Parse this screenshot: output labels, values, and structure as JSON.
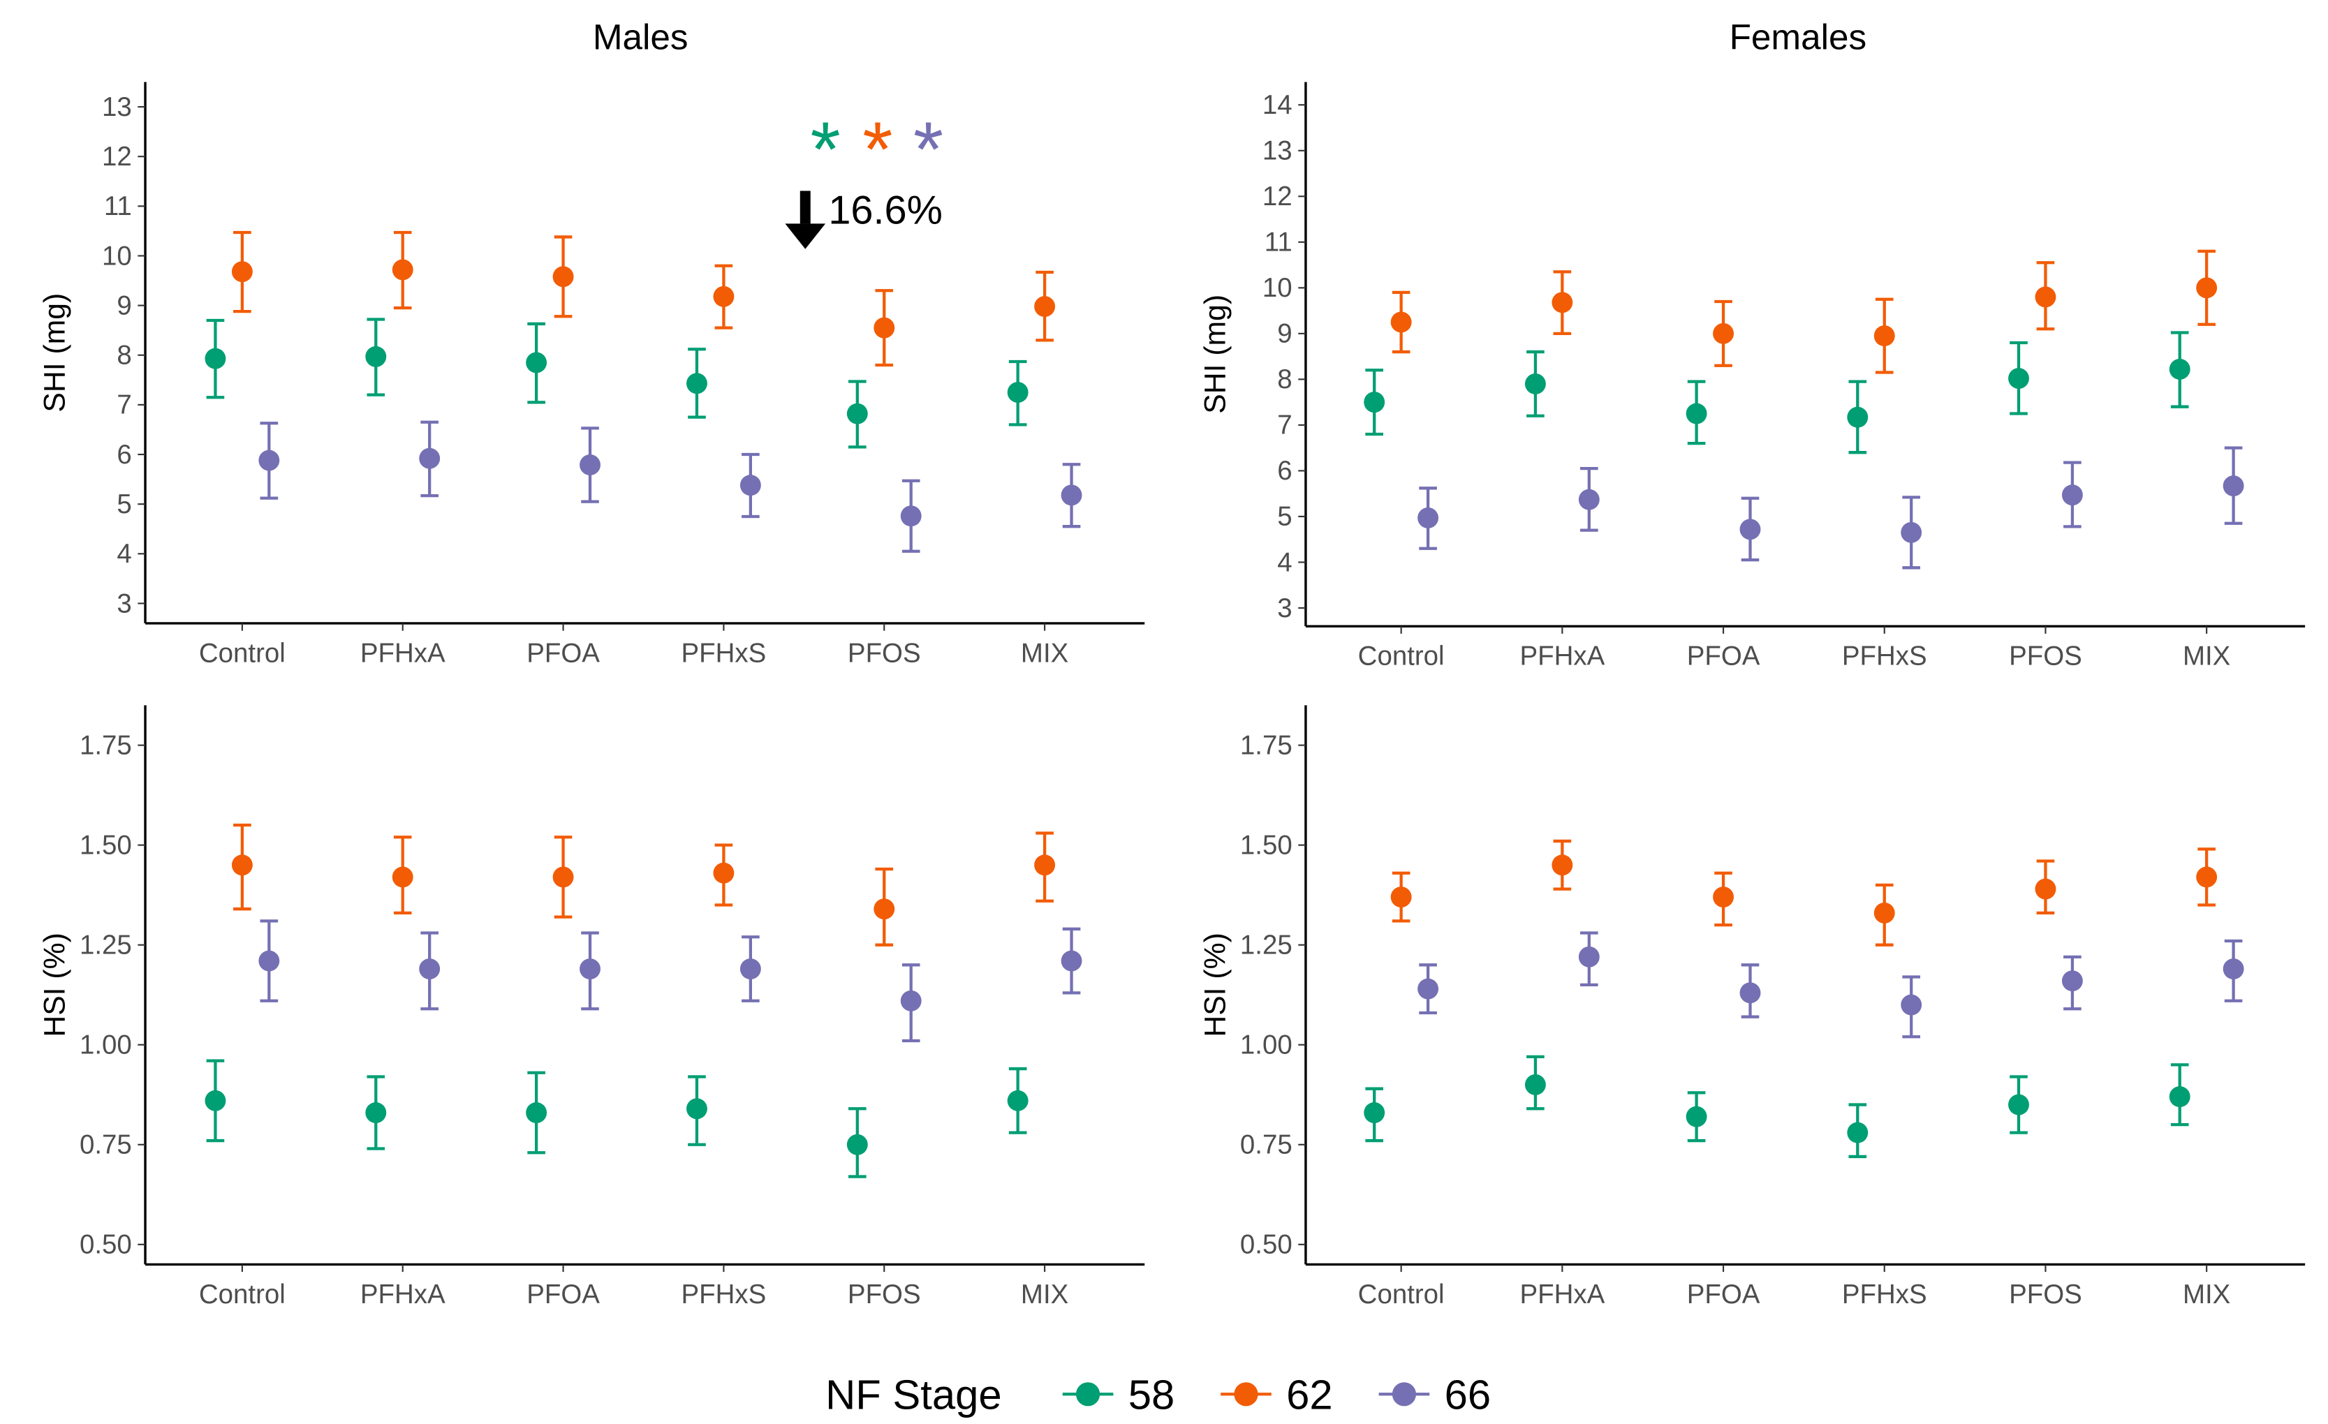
{
  "colors": {
    "58": "#009E73",
    "62": "#F25C05",
    "66": "#7570B3"
  },
  "legend": {
    "title": "NF Stage",
    "items": [
      "58",
      "62",
      "66"
    ]
  },
  "annotation": {
    "stars": "***",
    "arrow_label": "16.6%",
    "panel": "Males SHI",
    "category": "PFOS"
  },
  "chart_data": [
    {
      "type": "scatter",
      "title": "Males",
      "xlabel": "",
      "ylabel": "SHI (mg)",
      "ylim": [
        2.6,
        13.5
      ],
      "yticks": [
        3,
        4,
        5,
        6,
        7,
        8,
        9,
        10,
        11,
        12,
        13
      ],
      "categories": [
        "Control",
        "PFHxA",
        "PFOA",
        "PFHxS",
        "PFOS",
        "MIX"
      ],
      "series": [
        {
          "name": "58",
          "mean": [
            7.93,
            7.97,
            7.85,
            7.43,
            6.82,
            7.25
          ],
          "lo": [
            7.15,
            7.2,
            7.05,
            6.75,
            6.15,
            6.6
          ],
          "hi": [
            8.7,
            8.72,
            8.63,
            8.12,
            7.47,
            7.87
          ]
        },
        {
          "name": "62",
          "mean": [
            9.68,
            9.72,
            9.58,
            9.18,
            8.55,
            8.98
          ],
          "lo": [
            8.88,
            8.95,
            8.78,
            8.55,
            7.8,
            8.3
          ],
          "hi": [
            10.47,
            10.47,
            10.38,
            9.8,
            9.3,
            9.67
          ]
        },
        {
          "name": "66",
          "mean": [
            5.88,
            5.92,
            5.79,
            5.38,
            4.76,
            5.18
          ],
          "lo": [
            5.12,
            5.17,
            5.05,
            4.75,
            4.05,
            4.55
          ],
          "hi": [
            6.63,
            6.65,
            6.53,
            6.0,
            5.47,
            5.8
          ]
        }
      ]
    },
    {
      "type": "scatter",
      "title": "Females",
      "xlabel": "",
      "ylabel": "SHI (mg)",
      "ylim": [
        2.6,
        14.5
      ],
      "yticks": [
        3,
        4,
        5,
        6,
        7,
        8,
        9,
        10,
        11,
        12,
        13,
        14
      ],
      "categories": [
        "Control",
        "PFHxA",
        "PFOA",
        "PFHxS",
        "PFOS",
        "MIX"
      ],
      "series": [
        {
          "name": "58",
          "mean": [
            7.5,
            7.9,
            7.25,
            7.17,
            8.02,
            8.22
          ],
          "lo": [
            6.8,
            7.2,
            6.6,
            6.4,
            7.25,
            7.4
          ],
          "hi": [
            8.2,
            8.6,
            7.95,
            7.95,
            8.8,
            9.02
          ]
        },
        {
          "name": "62",
          "mean": [
            9.25,
            9.68,
            9.0,
            8.95,
            9.8,
            10.0
          ],
          "lo": [
            8.6,
            9.0,
            8.3,
            8.15,
            9.1,
            9.2
          ],
          "hi": [
            9.9,
            10.35,
            9.7,
            9.75,
            10.55,
            10.8
          ]
        },
        {
          "name": "66",
          "mean": [
            4.97,
            5.37,
            4.72,
            4.65,
            5.47,
            5.67
          ],
          "lo": [
            4.3,
            4.7,
            4.05,
            3.88,
            4.78,
            4.85
          ],
          "hi": [
            5.62,
            6.05,
            5.4,
            5.42,
            6.18,
            6.5
          ]
        }
      ]
    },
    {
      "type": "scatter",
      "title": "",
      "xlabel": "",
      "ylabel": "HSI (%)",
      "ylim": [
        0.45,
        1.85
      ],
      "yticks": [
        0.5,
        0.75,
        1.0,
        1.25,
        1.5,
        1.75
      ],
      "categories": [
        "Control",
        "PFHxA",
        "PFOA",
        "PFHxS",
        "PFOS",
        "MIX"
      ],
      "series": [
        {
          "name": "58",
          "mean": [
            0.86,
            0.83,
            0.83,
            0.84,
            0.75,
            0.86
          ],
          "lo": [
            0.76,
            0.74,
            0.73,
            0.75,
            0.67,
            0.78
          ],
          "hi": [
            0.96,
            0.92,
            0.93,
            0.92,
            0.84,
            0.94
          ]
        },
        {
          "name": "62",
          "mean": [
            1.45,
            1.42,
            1.42,
            1.43,
            1.34,
            1.45
          ],
          "lo": [
            1.34,
            1.33,
            1.32,
            1.35,
            1.25,
            1.36
          ],
          "hi": [
            1.55,
            1.52,
            1.52,
            1.5,
            1.44,
            1.53
          ]
        },
        {
          "name": "66",
          "mean": [
            1.21,
            1.19,
            1.19,
            1.19,
            1.11,
            1.21
          ],
          "lo": [
            1.11,
            1.09,
            1.09,
            1.11,
            1.01,
            1.13
          ],
          "hi": [
            1.31,
            1.28,
            1.28,
            1.27,
            1.2,
            1.29
          ]
        }
      ]
    },
    {
      "type": "scatter",
      "title": "",
      "xlabel": "",
      "ylabel": "HSI (%)",
      "ylim": [
        0.45,
        1.85
      ],
      "yticks": [
        0.5,
        0.75,
        1.0,
        1.25,
        1.5,
        1.75
      ],
      "categories": [
        "Control",
        "PFHxA",
        "PFOA",
        "PFHxS",
        "PFOS",
        "MIX"
      ],
      "series": [
        {
          "name": "58",
          "mean": [
            0.83,
            0.9,
            0.82,
            0.78,
            0.85,
            0.87
          ],
          "lo": [
            0.76,
            0.84,
            0.76,
            0.72,
            0.78,
            0.8
          ],
          "hi": [
            0.89,
            0.97,
            0.88,
            0.85,
            0.92,
            0.95
          ]
        },
        {
          "name": "62",
          "mean": [
            1.37,
            1.45,
            1.37,
            1.33,
            1.39,
            1.42
          ],
          "lo": [
            1.31,
            1.39,
            1.3,
            1.25,
            1.33,
            1.35
          ],
          "hi": [
            1.43,
            1.51,
            1.43,
            1.4,
            1.46,
            1.49
          ]
        },
        {
          "name": "66",
          "mean": [
            1.14,
            1.22,
            1.13,
            1.1,
            1.16,
            1.19
          ],
          "lo": [
            1.08,
            1.15,
            1.07,
            1.02,
            1.09,
            1.11
          ],
          "hi": [
            1.2,
            1.28,
            1.2,
            1.17,
            1.22,
            1.26
          ]
        }
      ]
    }
  ]
}
